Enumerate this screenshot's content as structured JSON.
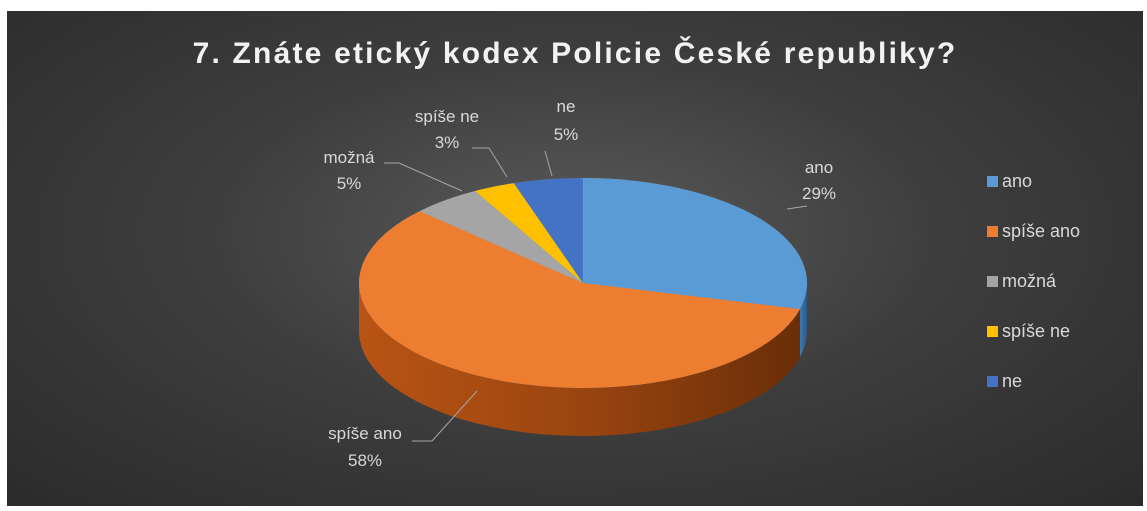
{
  "chart_data": {
    "type": "pie",
    "title": "7. Znáte etický kodex Policie České republiky?",
    "categories": [
      "ano",
      "spíše ano",
      "možná",
      "spíše ne",
      "ne"
    ],
    "values": [
      29,
      58,
      5,
      3,
      5
    ],
    "value_labels": [
      "29%",
      "58%",
      "5%",
      "3%",
      "5%"
    ],
    "colors": [
      "#5b9bd5",
      "#ed7d31",
      "#a5a5a5",
      "#ffc000",
      "#4472c4"
    ],
    "legend_position": "right",
    "style": "3d"
  }
}
